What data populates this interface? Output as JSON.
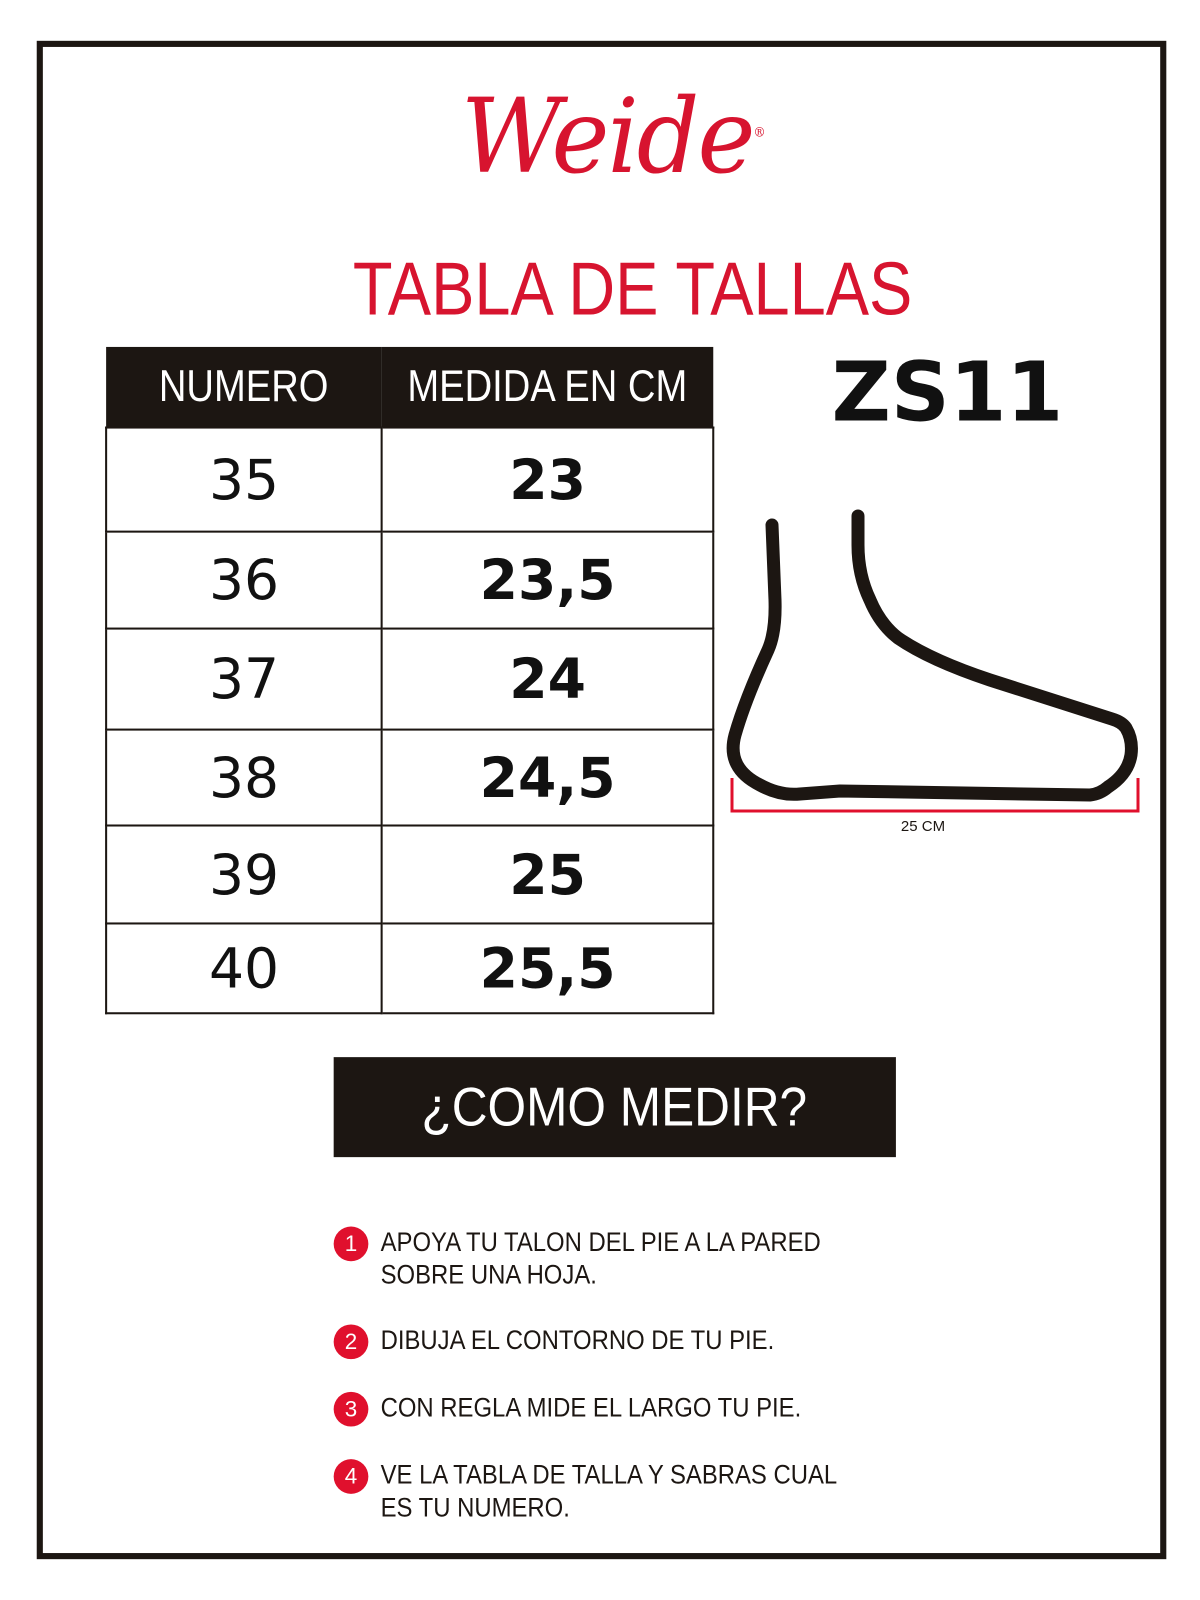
{
  "brand": {
    "name": "Weide",
    "registered": "®",
    "color": "#d7142f"
  },
  "title": "TABLA DE TALLAS",
  "model": "ZS11",
  "table": {
    "headers": [
      "NUMERO",
      "MEDIDA EN CM"
    ],
    "rows": [
      {
        "numero": "35",
        "medida": "23"
      },
      {
        "numero": "36",
        "medida": "23,5"
      },
      {
        "numero": "37",
        "medida": "24"
      },
      {
        "numero": "38",
        "medida": "24,5"
      },
      {
        "numero": "39",
        "medida": "25"
      },
      {
        "numero": "40",
        "medida": "25,5"
      }
    ]
  },
  "diagram": {
    "measure_label": "25 CM",
    "icon": "foot-outline-icon"
  },
  "howto": {
    "title": "¿COMO MEDIR?",
    "steps": [
      {
        "n": "1",
        "lines": [
          "APOYA TU TALON DEL PIE A LA PARED",
          "SOBRE UNA HOJA."
        ]
      },
      {
        "n": "2",
        "lines": [
          "DIBUJA EL CONTORNO DE TU PIE."
        ]
      },
      {
        "n": "3",
        "lines": [
          "CON REGLA MIDE EL LARGO TU PIE."
        ]
      },
      {
        "n": "4",
        "lines": [
          "VE LA TABLA DE TALLA Y SABRAS CUAL",
          "ES TU NUMERO."
        ]
      }
    ]
  }
}
